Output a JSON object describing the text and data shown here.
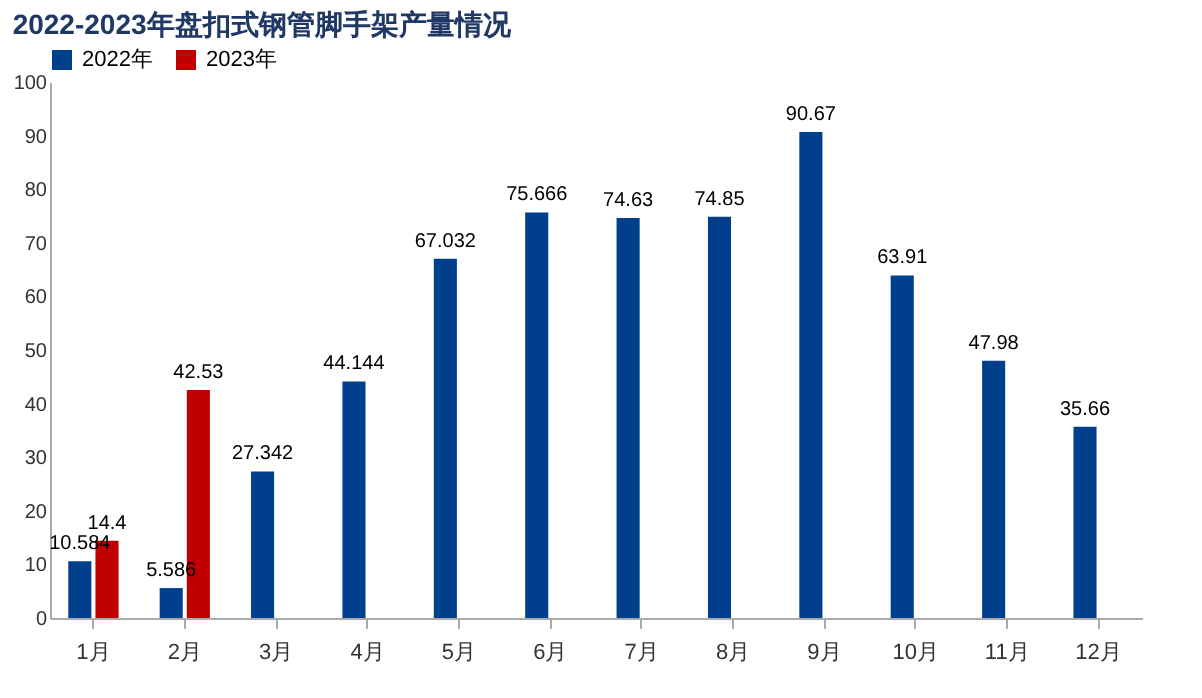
{
  "chart_data": {
    "type": "bar",
    "title": "2022-2023年盘扣式钢管脚手架产量情况",
    "categories": [
      "1月",
      "2月",
      "3月",
      "4月",
      "5月",
      "6月",
      "7月",
      "8月",
      "9月",
      "10月",
      "11月",
      "12月"
    ],
    "series": [
      {
        "name": "2022年",
        "color": "#003f8c",
        "values": [
          10.584,
          5.586,
          27.342,
          44.144,
          67.032,
          75.666,
          74.63,
          74.85,
          90.67,
          63.91,
          47.98,
          35.66
        ]
      },
      {
        "name": "2023年",
        "color": "#c00000",
        "values": [
          14.4,
          42.53,
          null,
          null,
          null,
          null,
          null,
          null,
          null,
          null,
          null,
          null
        ]
      }
    ],
    "ylim": [
      0,
      100
    ],
    "yticks": [
      0,
      10,
      20,
      30,
      40,
      50,
      60,
      70,
      80,
      90,
      100
    ],
    "grid": false,
    "legend": "top",
    "data_labels": true
  }
}
